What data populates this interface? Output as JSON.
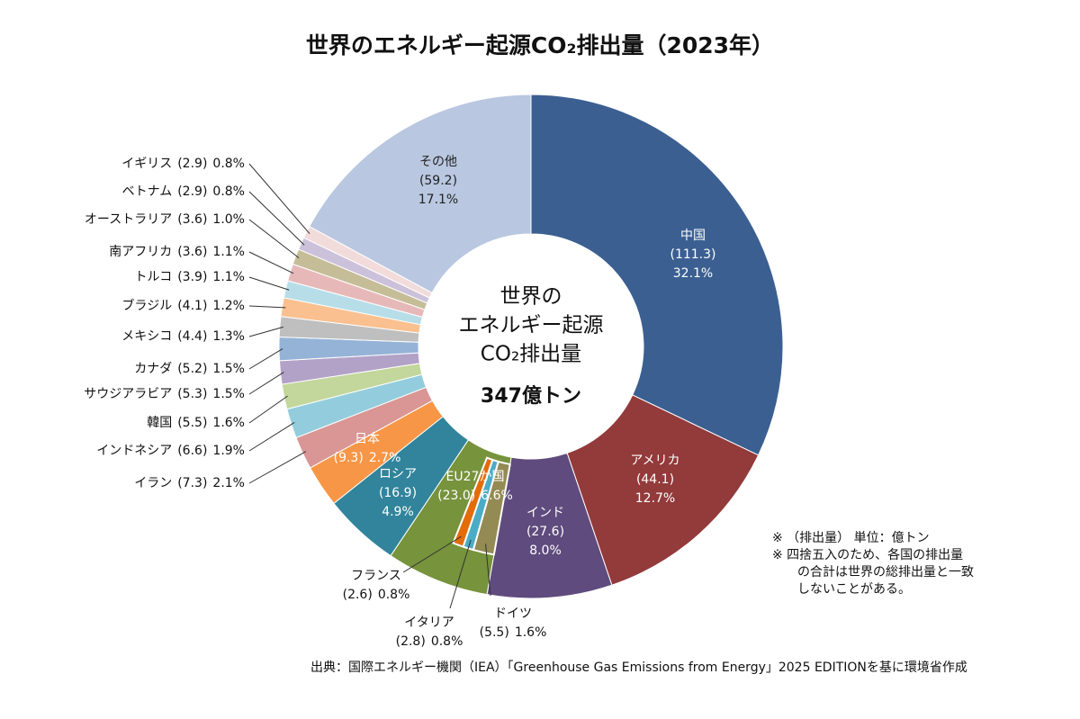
{
  "chart_data": {
    "type": "donut",
    "title": "世界のエネルギー起源CO₂排出量（2023年）",
    "center_lines": [
      "世界の",
      "エネルギー起源",
      "CO₂排出量"
    ],
    "center_total": "347億トン",
    "categories": [
      "中国",
      "アメリカ",
      "インド",
      "EU27か国",
      "ロシア",
      "日本",
      "イラン",
      "インドネシア",
      "韓国",
      "サウジアラビア",
      "カナダ",
      "メキシコ",
      "ブラジル",
      "トルコ",
      "南アフリカ",
      "オーストラリア",
      "ベトナム",
      "イギリス",
      "その他"
    ],
    "values": [
      32.1,
      12.7,
      8.0,
      6.6,
      4.9,
      2.7,
      2.1,
      1.9,
      1.6,
      1.5,
      1.5,
      1.3,
      1.2,
      1.1,
      1.1,
      1.0,
      0.8,
      0.8,
      17.1
    ],
    "value_labels": [
      "32.1%",
      "12.7%",
      "8.0%",
      "6.6%",
      "4.9%",
      "2.7%",
      "2.1%",
      "1.9%",
      "1.6%",
      "1.5%",
      "1.5%",
      "1.3%",
      "1.2%",
      "1.1%",
      "1.1%",
      "1.0%",
      "0.8%",
      "0.8%",
      "17.1%"
    ],
    "amount_labels": [
      "(111.3)",
      "(44.1)",
      "(27.6)",
      "(23.0)",
      "(16.9)",
      "(9.3)",
      "(7.3)",
      "(6.6)",
      "(5.5)",
      "(5.3)",
      "(5.2)",
      "(4.4)",
      "(4.1)",
      "(3.9)",
      "(3.6)",
      "(3.6)",
      "(2.9)",
      "(2.9)",
      "(59.2)"
    ],
    "colors": [
      "#3b5f91",
      "#933a3a",
      "#5f4b7d",
      "#77933c",
      "#31849b",
      "#f79646",
      "#d99694",
      "#93cddd",
      "#c3d69b",
      "#b3a2c7",
      "#95b3d7",
      "#bfbfbf",
      "#fac090",
      "#b7dee8",
      "#e6b9b8",
      "#c4bd97",
      "#ccc1da",
      "#f2dcdb",
      "#b9c7e0"
    ],
    "sub_categories": [
      "ドイツ",
      "イタリア",
      "フランス"
    ],
    "sub_values": [
      1.6,
      0.8,
      0.8
    ],
    "sub_value_labels": [
      "1.6%",
      "0.8%",
      "0.8%"
    ],
    "sub_amount_labels": [
      "(5.5)",
      "(2.8)",
      "(2.6)"
    ],
    "sub_colors": [
      "#948a54",
      "#4bacc6",
      "#e36c09"
    ],
    "notes": [
      "※ （排出量） 単位：億トン",
      "※ 四捨五入のため、各国の排出量",
      "の合計は世界の総排出量と一致",
      "しないことがある。"
    ],
    "source": "出典：国際エネルギー機関（IEA）「Greenhouse Gas Emissions from Energy」2025 EDITIONを基に環境省作成"
  }
}
